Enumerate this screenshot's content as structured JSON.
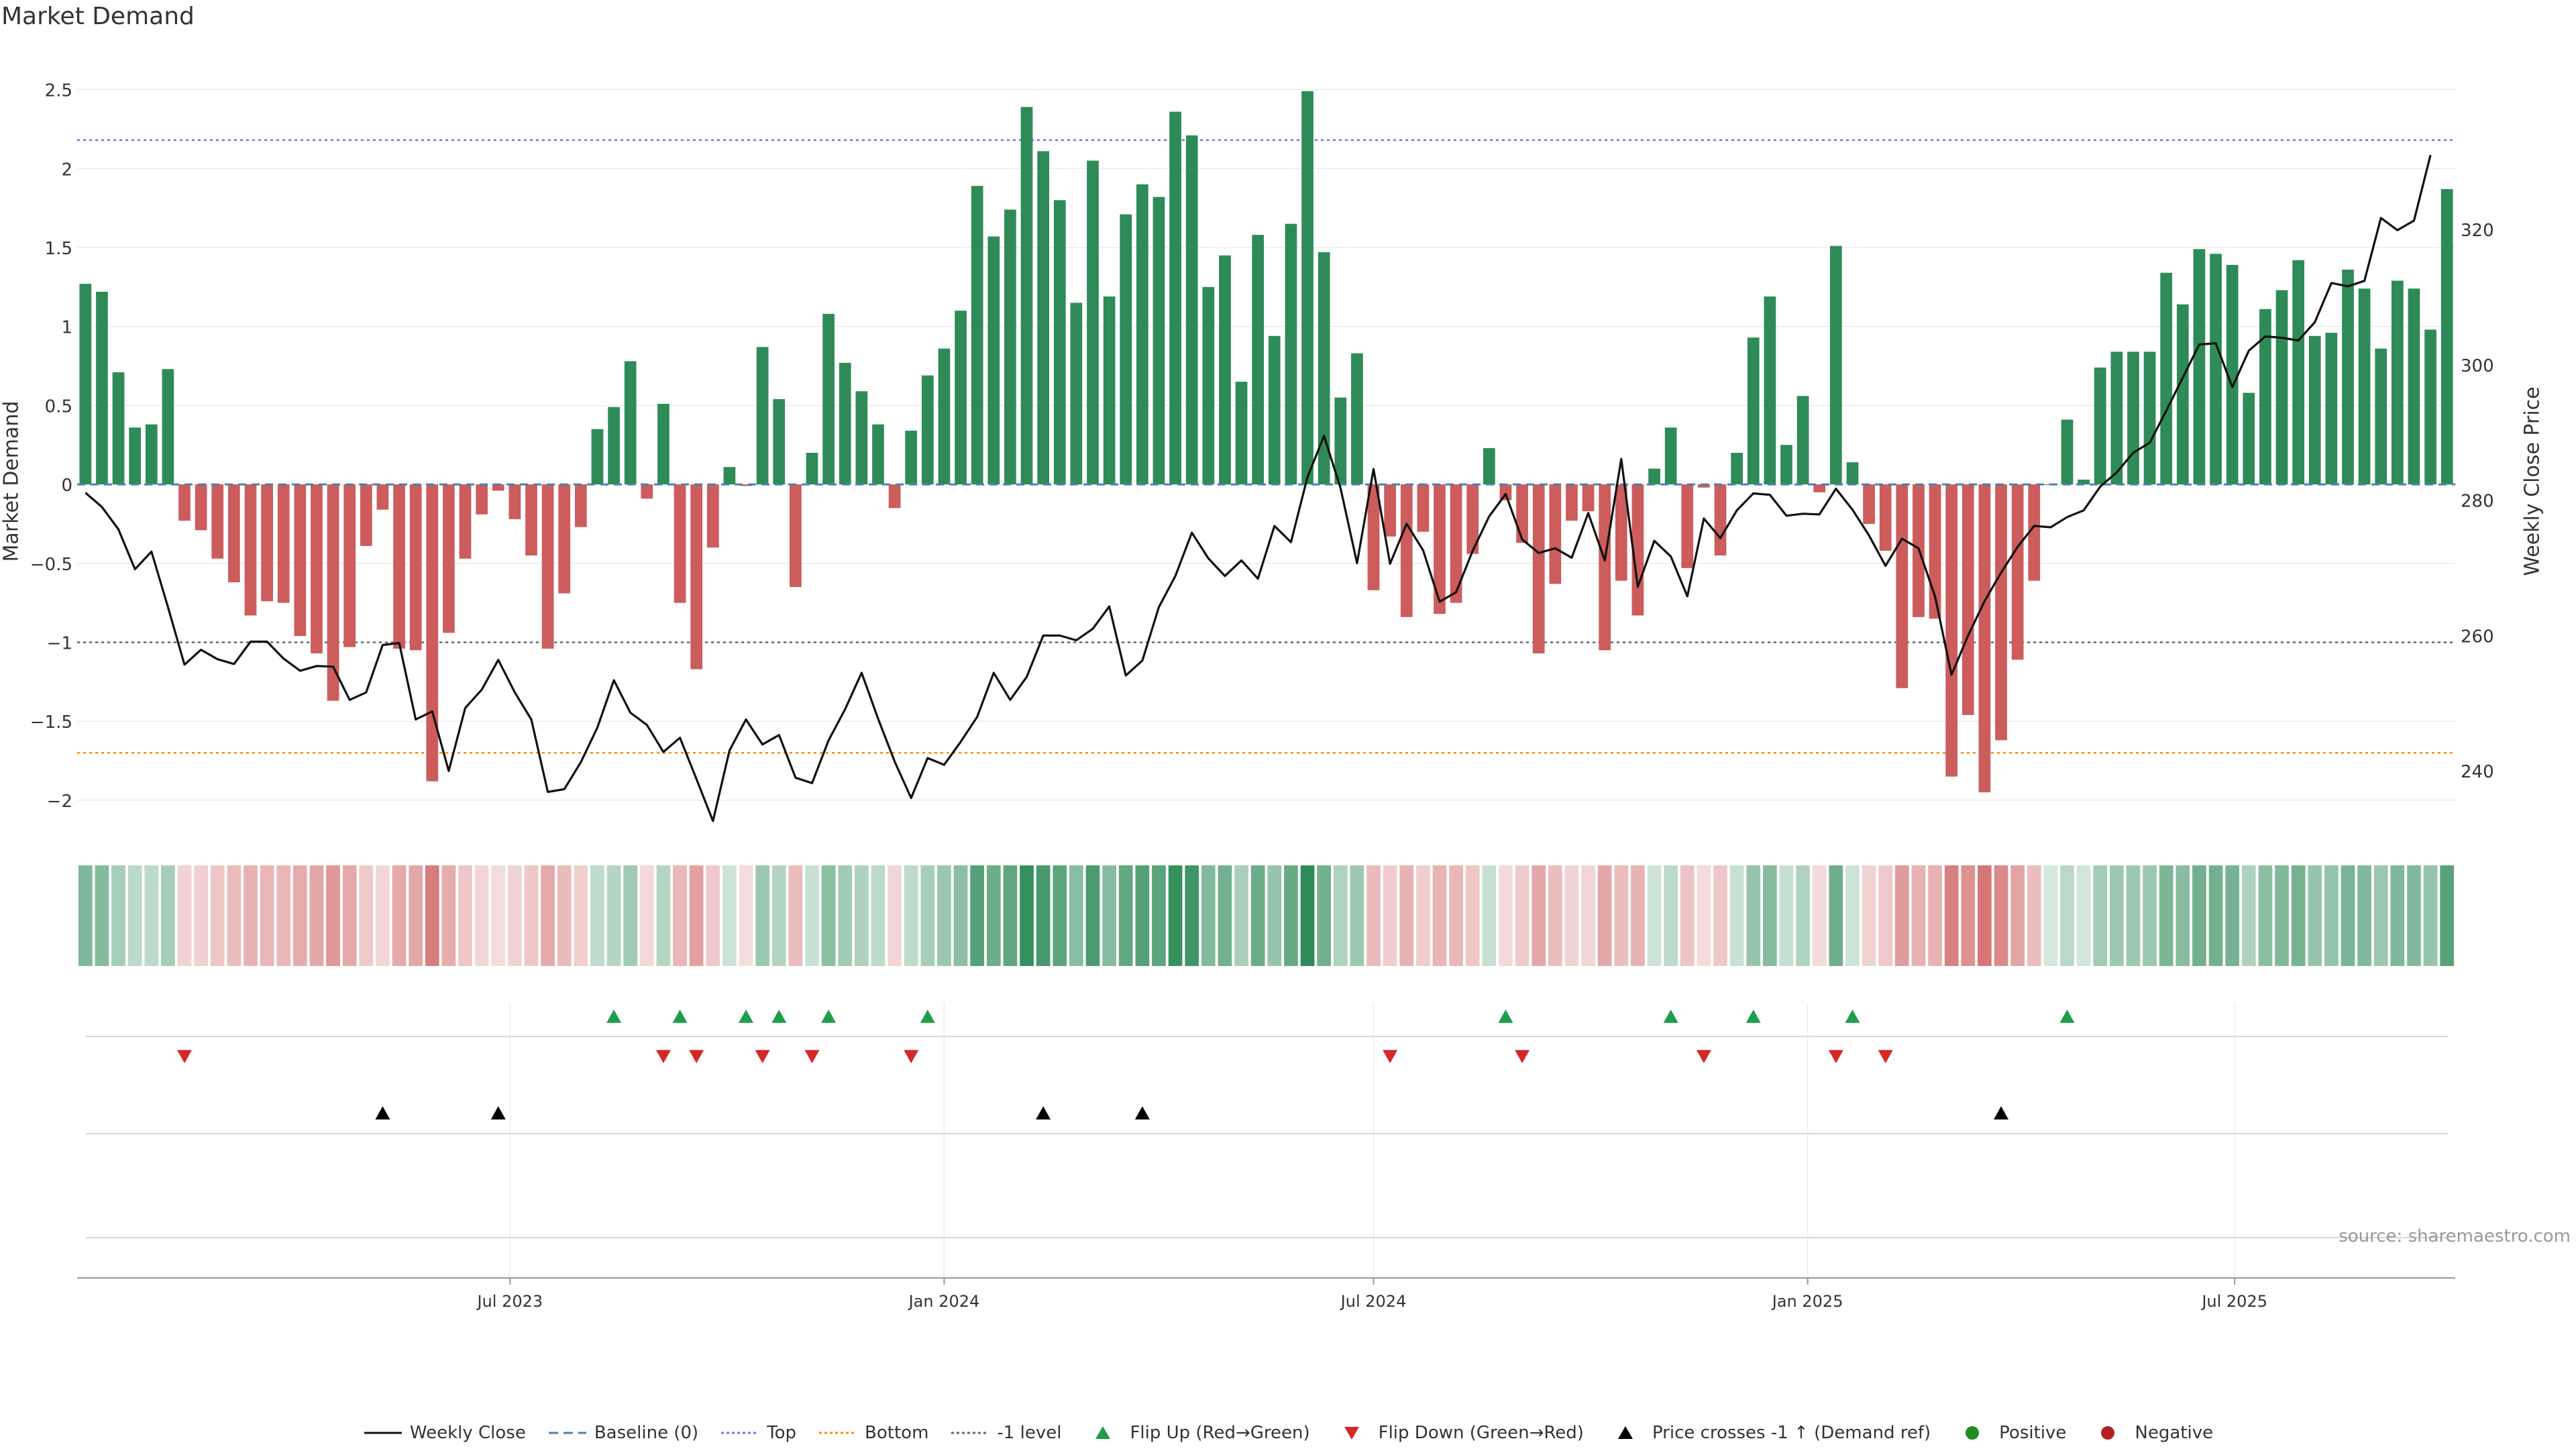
{
  "chart_data": {
    "type": "bar",
    "title": "Market Demand",
    "ylabel": "Market Demand",
    "y2label": "Weekly Close Price",
    "ylim": [
      -2.2,
      2.6
    ],
    "y2lim": [
      231.0,
      343.0
    ],
    "yticks": [
      2.5,
      2,
      1.5,
      1,
      0.5,
      0,
      -0.5,
      -1,
      -1.5,
      -2
    ],
    "ytick_labels": [
      "2.5",
      "2",
      "1.5",
      "1",
      "0.5",
      "0",
      "−0.5",
      "−1",
      "−1.5",
      "−2"
    ],
    "y2ticks": [
      240,
      260,
      280,
      300,
      320
    ],
    "x_start": "2023-01-02",
    "x_end": "2025-10-13",
    "xticks": [
      {
        "date": "2023-07-01",
        "label": "Jul 2023"
      },
      {
        "date": "2024-01-01",
        "label": "Jan 2024"
      },
      {
        "date": "2024-07-01",
        "label": "Jul 2024"
      },
      {
        "date": "2025-01-01",
        "label": "Jan 2025"
      },
      {
        "date": "2025-07-01",
        "label": "Jul 2025"
      }
    ],
    "reference_lines": {
      "top": 2.18,
      "baseline": 0,
      "minus_one": -1,
      "bottom": -1.7
    },
    "colors": {
      "positive": "#2e8b57",
      "negative": "#cd5c5c",
      "price": "#111111",
      "top_line": "#7b68ee",
      "bottom_line": "#ff8c00",
      "minus_one_line": "#666666",
      "baseline_line": "#4682b4",
      "flip_up": "#1e9e4a",
      "flip_down": "#d62728",
      "cross": "#000000",
      "legend_positive": "#228b22",
      "legend_negative": "#b22222"
    },
    "series": [
      {
        "name": "Market Demand",
        "values": [
          1.27,
          1.22,
          0.71,
          0.36,
          0.38,
          0.73,
          -0.23,
          -0.29,
          -0.47,
          -0.62,
          -0.83,
          -0.74,
          -0.75,
          -0.96,
          -1.07,
          -1.37,
          -1.03,
          -0.39,
          -0.16,
          -1.04,
          -1.05,
          -1.88,
          -0.94,
          -0.47,
          -0.19,
          -0.04,
          -0.22,
          -0.45,
          -1.04,
          -0.69,
          -0.27,
          0.35,
          0.49,
          0.78,
          -0.09,
          0.51,
          -0.75,
          -1.17,
          -0.4,
          0.11,
          -0.01,
          0.87,
          0.54,
          -0.65,
          0.2,
          1.08,
          0.77,
          0.59,
          0.38,
          -0.15,
          0.34,
          0.69,
          0.86,
          1.1,
          1.89,
          1.57,
          1.74,
          2.39,
          2.11,
          1.8,
          1.15,
          2.05,
          1.19,
          1.71,
          1.9,
          1.82,
          2.36,
          2.21,
          1.25,
          1.45,
          0.65,
          1.58,
          0.94,
          1.65,
          2.49,
          1.47,
          0.55,
          0.83,
          -0.67,
          -0.33,
          -0.84,
          -0.3,
          -0.82,
          -0.75,
          -0.44,
          0.23,
          -0.1,
          -0.37,
          -1.07,
          -0.63,
          -0.23,
          -0.17,
          -1.05,
          -0.61,
          -0.83,
          0.1,
          0.36,
          -0.53,
          -0.02,
          -0.45,
          0.2,
          0.93,
          1.19,
          0.25,
          0.56,
          -0.05,
          1.51,
          0.14,
          -0.25,
          -0.42,
          -1.29,
          -0.84,
          -0.85,
          -1.85,
          -1.46,
          -1.95,
          -1.62,
          -1.11,
          -0.61,
          0.0,
          0.41,
          0.03,
          0.74,
          0.84,
          0.84,
          0.84,
          1.34,
          1.14,
          1.49,
          1.46,
          1.39,
          0.58,
          1.11,
          1.23,
          1.42,
          0.94,
          0.96,
          1.36,
          1.24,
          0.86,
          1.29,
          1.24,
          0.98,
          1.87
        ]
      },
      {
        "name": "Weekly Close",
        "axis": "right",
        "values": [
          281.1,
          279.0,
          275.7,
          269.8,
          272.4,
          264.2,
          255.7,
          257.9,
          256.5,
          255.8,
          259.1,
          259.1,
          256.6,
          254.8,
          255.5,
          255.4,
          250.5,
          251.6,
          258.6,
          258.9,
          247.6,
          248.8,
          240.0,
          249.3,
          252.0,
          256.4,
          251.6,
          247.6,
          236.9,
          237.3,
          241.3,
          246.4,
          253.4,
          248.6,
          246.8,
          242.8,
          244.9,
          238.8,
          232.6,
          243.0,
          247.6,
          243.9,
          245.3,
          239.0,
          238.2,
          244.5,
          249.1,
          254.5,
          247.7,
          241.4,
          236.0,
          241.9,
          240.9,
          244.3,
          248.0,
          254.5,
          250.5,
          253.9,
          260.0,
          260.0,
          259.3,
          261.0,
          264.3,
          254.1,
          256.3,
          264.2,
          268.8,
          275.2,
          271.4,
          268.8,
          271.1,
          268.4,
          276.2,
          273.8,
          283.4,
          289.5,
          281.8,
          270.7,
          284.6,
          270.6,
          276.5,
          272.6,
          265.0,
          266.4,
          272.5,
          277.6,
          280.9,
          274.2,
          272.2,
          272.9,
          271.5,
          278.1,
          271.1,
          286.1,
          267.2,
          274.0,
          271.7,
          265.8,
          277.3,
          274.4,
          278.5,
          281.0,
          280.8,
          277.7,
          278.0,
          277.9,
          281.7,
          278.6,
          274.8,
          270.3,
          274.3,
          272.9,
          265.8,
          254.2,
          260.0,
          265.1,
          269.3,
          273.1,
          276.2,
          276.0,
          277.5,
          278.5,
          282.0,
          284.1,
          287.0,
          288.5,
          293.2,
          298.1,
          303.0,
          303.2,
          296.7,
          302.1,
          304.2,
          304.0,
          303.6,
          306.3,
          312.1,
          311.6,
          312.4,
          321.7,
          319.9,
          321.3,
          331.0
        ]
      }
    ],
    "heat_strip": {
      "min_opacity": 0.2,
      "max_opacity": 1.0
    },
    "flip_up_weeks": [
      32,
      36,
      40,
      42,
      45,
      51,
      86,
      96,
      101,
      107,
      120
    ],
    "flip_down_weeks": [
      6,
      35,
      37,
      41,
      44,
      50,
      79,
      87,
      98,
      106,
      109
    ],
    "price_cross_weeks": [
      18,
      25,
      58,
      64,
      116
    ],
    "annotation": "source: sharemaestro.com",
    "legend": [
      {
        "label": "Weekly Close",
        "marker": "solid-line",
        "color": "#111111"
      },
      {
        "label": "Baseline (0)",
        "marker": "dashed-line",
        "color": "#4682b4"
      },
      {
        "label": "Top",
        "marker": "dotted-line",
        "color": "#7b68ee"
      },
      {
        "label": "Bottom",
        "marker": "dotted-line",
        "color": "#ff8c00"
      },
      {
        "label": "-1 level",
        "marker": "dotted-line",
        "color": "#666666"
      },
      {
        "label": "Flip Up (Red→Green)",
        "marker": "triangle-up",
        "color": "#1e9e4a"
      },
      {
        "label": "Flip Down (Green→Red)",
        "marker": "triangle-down",
        "color": "#d62728"
      },
      {
        "label": "Price crosses -1 ↑ (Demand ref)",
        "marker": "triangle-up",
        "color": "#000000"
      },
      {
        "label": "Positive",
        "marker": "dot",
        "color": "#228b22"
      },
      {
        "label": "Negative",
        "marker": "dot",
        "color": "#b22222"
      }
    ]
  }
}
